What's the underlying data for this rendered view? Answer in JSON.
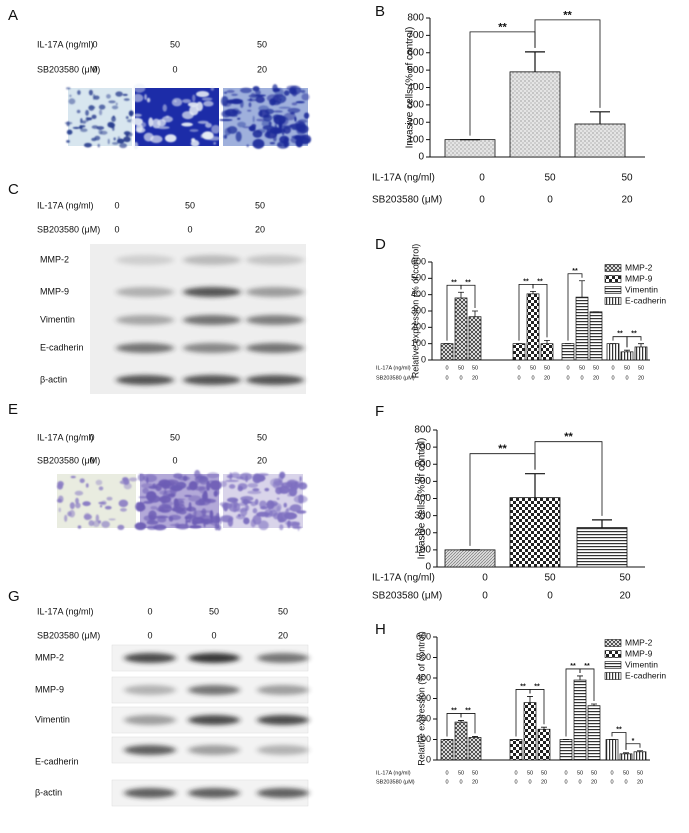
{
  "panels": {
    "A": {
      "label": "A",
      "treatments": [
        {
          "name": "IL-17A (ng/ml)",
          "values": [
            0,
            50,
            50
          ]
        },
        {
          "name": "SB203580 (μM)",
          "values": [
            0,
            0,
            20
          ]
        }
      ]
    },
    "C": {
      "label": "C",
      "treatments": [
        {
          "name": "IL-17A (ng/ml)",
          "values": [
            0,
            50,
            50
          ]
        },
        {
          "name": "SB203580 (μM)",
          "values": [
            0,
            0,
            20
          ]
        }
      ],
      "blots": [
        "MMP-2",
        "MMP-9",
        "Vimentin",
        "E-cadherin",
        "β-actin"
      ]
    },
    "E": {
      "label": "E",
      "treatments": [
        {
          "name": "IL-17A (ng/ml)",
          "values": [
            0,
            50,
            50
          ]
        },
        {
          "name": "SB203580 (μM)",
          "values": [
            0,
            0,
            20
          ]
        }
      ]
    },
    "G": {
      "label": "G",
      "treatments": [
        {
          "name": "IL-17A (ng/ml)",
          "values": [
            0,
            50,
            50
          ]
        },
        {
          "name": "SB203580 (μM)",
          "values": [
            0,
            0,
            20
          ]
        }
      ],
      "blots": [
        "MMP-2",
        "MMP-9",
        "Vimentin",
        "E-cadherin",
        "β-actin"
      ]
    }
  },
  "chart_data": [
    {
      "type": "bar",
      "label": "B",
      "y_label": "Invasive cells (% of control)",
      "values": [
        100,
        490,
        190
      ],
      "errors": [
        0,
        115,
        70
      ],
      "significance": [
        "**",
        "**"
      ],
      "treatments": [
        {
          "name": "IL-17A (ng/ml)",
          "values": [
            0,
            50,
            50
          ]
        },
        {
          "name": "SB203580 (μM)",
          "values": [
            0,
            0,
            20
          ]
        }
      ],
      "ylim": [
        0,
        800
      ],
      "yticks": [
        0,
        100,
        200,
        300,
        400,
        500,
        600,
        700,
        800
      ]
    },
    {
      "type": "bar",
      "label": "D",
      "y_label": "Relative expression (% of control)",
      "legend": "upper right",
      "series": [
        {
          "name": "MMP-2",
          "values": [
            100,
            380,
            265
          ],
          "errors": [
            0,
            35,
            35
          ],
          "significance": [
            "**",
            "**"
          ]
        },
        {
          "name": "MMP-9",
          "values": [
            100,
            405,
            100
          ],
          "errors": [
            0,
            15,
            20
          ],
          "significance": [
            "**",
            "**"
          ]
        },
        {
          "name": "Vimentin",
          "values": [
            100,
            385,
            295
          ],
          "errors": [
            0,
            100,
            0
          ],
          "significance": [
            "**"
          ]
        },
        {
          "name": "E-cadherin",
          "values": [
            100,
            50,
            80
          ],
          "errors": [
            0,
            10,
            20
          ],
          "significance": [
            "**",
            "**"
          ]
        }
      ],
      "treatments": [
        {
          "name": "IL-17A (ng/ml)",
          "values": [
            0,
            50,
            50
          ]
        },
        {
          "name": "SB203580 (μM)",
          "values": [
            0,
            0,
            20
          ]
        }
      ],
      "ylim": [
        0,
        600
      ],
      "yticks": [
        0,
        100,
        200,
        300,
        400,
        500,
        600
      ]
    },
    {
      "type": "bar",
      "label": "F",
      "y_label": "Invasive cells (% of control)",
      "values": [
        100,
        405,
        230
      ],
      "errors": [
        0,
        140,
        45
      ],
      "significance": [
        "**",
        "**"
      ],
      "treatments": [
        {
          "name": "IL-17A (ng/ml)",
          "values": [
            0,
            50,
            50
          ]
        },
        {
          "name": "SB203580 (μM)",
          "values": [
            0,
            0,
            20
          ]
        }
      ],
      "ylim": [
        0,
        800
      ],
      "yticks": [
        0,
        100,
        200,
        300,
        400,
        500,
        600,
        700,
        800
      ]
    },
    {
      "type": "bar",
      "label": "H",
      "y_label": "Relative expression (% of control)",
      "legend": "upper right",
      "series": [
        {
          "name": "MMP-2",
          "values": [
            100,
            185,
            110
          ],
          "errors": [
            0,
            8,
            5
          ],
          "significance": [
            "**",
            "**"
          ]
        },
        {
          "name": "MMP-9",
          "values": [
            100,
            280,
            150
          ],
          "errors": [
            0,
            30,
            10
          ],
          "significance": [
            "**",
            "**"
          ]
        },
        {
          "name": "Vimentin",
          "values": [
            100,
            390,
            265
          ],
          "errors": [
            0,
            20,
            8
          ],
          "significance": [
            "**",
            "**"
          ]
        },
        {
          "name": "E-cadherin",
          "values": [
            100,
            30,
            40
          ],
          "errors": [
            0,
            5,
            5
          ],
          "significance": [
            "**",
            "*"
          ]
        }
      ],
      "treatments": [
        {
          "name": "IL-17A (ng/ml)",
          "values": [
            0,
            50,
            50
          ]
        },
        {
          "name": "SB203580 (μM)",
          "values": [
            0,
            0,
            20
          ]
        }
      ],
      "ylim": [
        0,
        600
      ],
      "yticks": [
        0,
        100,
        200,
        300,
        400,
        500,
        600
      ]
    }
  ]
}
